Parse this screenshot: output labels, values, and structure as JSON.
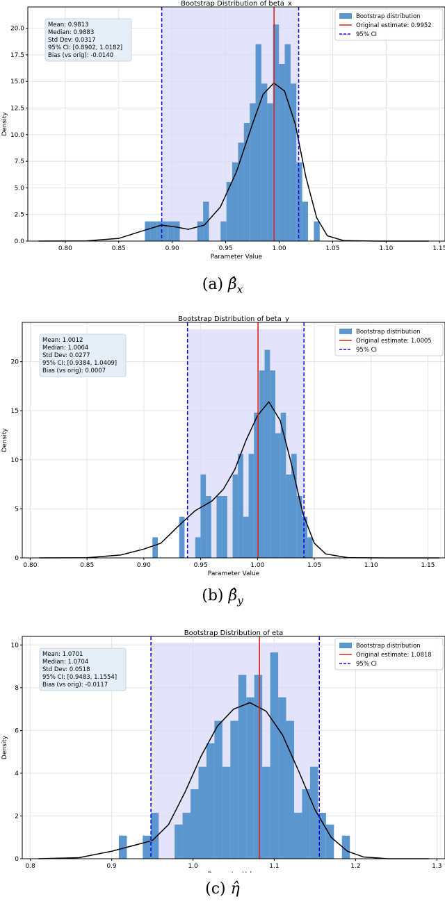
{
  "charts": [
    {
      "id": "a",
      "caption_prefix": "(a)",
      "caption_symbol": "β̂",
      "caption_subscript": "x",
      "stats": [
        "Mean: 0.9813",
        "Median: 0.9883",
        "Std Dev: 0.0317",
        "95% CI: [0.8902, 1.0182]",
        "Bias (vs orig): -0.0140"
      ]
    },
    {
      "id": "b",
      "caption_prefix": "(b)",
      "caption_symbol": "β̂",
      "caption_subscript": "y",
      "stats": [
        "Mean: 1.0012",
        "Median: 1.0064",
        "Std Dev: 0.0277",
        "95% CI: [0.9384, 1.0409]",
        "Bias (vs orig): 0.0007"
      ]
    },
    {
      "id": "c",
      "caption_prefix": "(c)",
      "caption_symbol": "η̂",
      "caption_subscript": "",
      "stats": [
        "Mean: 1.0701",
        "Median: 1.0704",
        "Std Dev: 0.0518",
        "95% CI: [0.9483, 1.1554]",
        "Bias (vs orig): -0.0117"
      ]
    }
  ],
  "chart_data": [
    {
      "type": "bar",
      "title": "Bootstrap Distribution of beta_x",
      "xlabel": "Parameter Value",
      "ylabel": "Density",
      "xlim": [
        0.765,
        1.155
      ],
      "ylim": [
        0,
        22.0
      ],
      "xticks": [
        0.8,
        0.85,
        0.9,
        0.95,
        1.0,
        1.05,
        1.1,
        1.15
      ],
      "xtick_labels": [
        "0.80",
        "0.85",
        "0.90",
        "0.95",
        "1.00",
        "1.05",
        "1.10",
        "1.15"
      ],
      "yticks": [
        0,
        2.5,
        5,
        7.5,
        10,
        12.5,
        15,
        17.5,
        20
      ],
      "ytick_labels": [
        "0.0",
        "2.5",
        "5.0",
        "7.5",
        "10.0",
        "12.5",
        "15.0",
        "17.5",
        "20.0"
      ],
      "bin_width": 0.00545,
      "bins": [
        [
          0.8744,
          1.85
        ],
        [
          0.8798,
          1.85
        ],
        [
          0.8853,
          1.85
        ],
        [
          0.8907,
          1.85
        ],
        [
          0.8962,
          1.85
        ],
        [
          0.9016,
          1.85
        ],
        [
          0.9234,
          1.85
        ],
        [
          0.9289,
          3.7
        ],
        [
          0.9452,
          1.85
        ],
        [
          0.9507,
          5.55
        ],
        [
          0.9561,
          7.4
        ],
        [
          0.9616,
          9.25
        ],
        [
          0.967,
          11.1
        ],
        [
          0.9725,
          12.95
        ],
        [
          0.9779,
          18.5
        ],
        [
          0.9834,
          14.8
        ],
        [
          0.9888,
          12.95
        ],
        [
          0.9943,
          20.35
        ],
        [
          0.9997,
          16.65
        ],
        [
          1.0052,
          18.5
        ],
        [
          1.0106,
          14.8
        ],
        [
          1.0161,
          7.4
        ],
        [
          1.0215,
          3.7
        ],
        [
          1.0324,
          1.85
        ]
      ],
      "kde": [
        [
          0.775,
          0
        ],
        [
          0.82,
          0.02
        ],
        [
          0.85,
          0.25
        ],
        [
          0.875,
          1.05
        ],
        [
          0.89,
          1.5
        ],
        [
          0.905,
          1.3
        ],
        [
          0.915,
          1.1
        ],
        [
          0.93,
          1.5
        ],
        [
          0.945,
          3.2
        ],
        [
          0.96,
          6.5
        ],
        [
          0.975,
          11.0
        ],
        [
          0.985,
          13.8
        ],
        [
          0.995,
          14.85
        ],
        [
          1.005,
          14.1
        ],
        [
          1.015,
          11.0
        ],
        [
          1.025,
          6.0
        ],
        [
          1.035,
          2.2
        ],
        [
          1.045,
          0.5
        ],
        [
          1.06,
          0.05
        ],
        [
          1.09,
          0.0
        ],
        [
          1.14,
          0.0
        ]
      ],
      "original_estimate": 0.9952,
      "ci": [
        0.8902,
        1.0182
      ],
      "ci_fill_top": 21.9,
      "legend": [
        "Bootstrap distribution",
        "Original estimate: 0.9952",
        "95% CI"
      ]
    },
    {
      "type": "bar",
      "title": "Bootstrap Distribution of beta_y",
      "xlabel": "Parameter Value",
      "ylabel": "Density",
      "xlim": [
        0.793,
        1.165
      ],
      "ylim": [
        0,
        24.0
      ],
      "xticks": [
        0.8,
        0.85,
        0.9,
        0.95,
        1.0,
        1.05,
        1.1,
        1.15
      ],
      "xtick_labels": [
        "0.80",
        "0.85",
        "0.90",
        "0.95",
        "1.00",
        "1.05",
        "1.10",
        "1.15"
      ],
      "yticks": [
        0,
        5,
        10,
        15,
        20
      ],
      "ytick_labels": [
        "0",
        "5",
        "10",
        "15",
        "20"
      ],
      "bin_width": 0.0047,
      "bins": [
        [
          0.9076,
          2.1
        ],
        [
          0.9311,
          4.2
        ],
        [
          0.9452,
          2.1
        ],
        [
          0.9499,
          8.5
        ],
        [
          0.9546,
          6.3
        ],
        [
          0.964,
          6.3
        ],
        [
          0.9687,
          6.3
        ],
        [
          0.9781,
          8.5
        ],
        [
          0.9828,
          10.6
        ],
        [
          0.9875,
          4.2
        ],
        [
          0.9922,
          10.6
        ],
        [
          0.9969,
          14.8
        ],
        [
          1.0016,
          19.1
        ],
        [
          1.0063,
          21.2
        ],
        [
          1.011,
          19.1
        ],
        [
          1.0157,
          12.7
        ],
        [
          1.0204,
          14.8
        ],
        [
          1.0251,
          8.5
        ],
        [
          1.0298,
          10.6
        ],
        [
          1.0345,
          6.3
        ],
        [
          1.0392,
          4.2
        ],
        [
          1.0439,
          2.1
        ]
      ],
      "kde": [
        [
          0.808,
          0
        ],
        [
          0.85,
          0.02
        ],
        [
          0.88,
          0.3
        ],
        [
          0.9,
          0.9
        ],
        [
          0.915,
          1.5
        ],
        [
          0.93,
          3.2
        ],
        [
          0.945,
          4.8
        ],
        [
          0.96,
          5.8
        ],
        [
          0.97,
          7.0
        ],
        [
          0.98,
          9.0
        ],
        [
          0.99,
          12.0
        ],
        [
          1.0,
          14.5
        ],
        [
          1.01,
          15.9
        ],
        [
          1.02,
          14.0
        ],
        [
          1.03,
          9.5
        ],
        [
          1.04,
          4.5
        ],
        [
          1.05,
          1.5
        ],
        [
          1.06,
          0.4
        ],
        [
          1.08,
          0.02
        ],
        [
          1.11,
          0.0
        ],
        [
          1.16,
          0.0
        ]
      ],
      "original_estimate": 1.0005,
      "ci": [
        0.9384,
        1.0409
      ],
      "ci_fill_top": 23.3,
      "legend": [
        "Bootstrap distribution",
        "Original estimate: 1.0005",
        "95% CI"
      ]
    },
    {
      "type": "bar",
      "title": "Bootstrap Distribution of eta",
      "xlabel": "Parameter Value",
      "ylabel": "Density",
      "xlim": [
        0.79,
        1.31
      ],
      "ylim": [
        0,
        10.4
      ],
      "xticks": [
        0.8,
        0.9,
        1.0,
        1.1,
        1.2,
        1.3
      ],
      "xtick_labels": [
        "0.8",
        "0.9",
        "1.0",
        "1.1",
        "1.2",
        "1.3"
      ],
      "yticks": [
        0,
        2,
        4,
        6,
        8,
        10
      ],
      "ytick_labels": [
        "0",
        "2",
        "4",
        "6",
        "8",
        "10"
      ],
      "bin_width": 0.0098,
      "bins": [
        [
          0.9088,
          1.08
        ],
        [
          0.9382,
          1.08
        ],
        [
          0.948,
          2.15
        ],
        [
          0.9774,
          1.6
        ],
        [
          0.9872,
          2.15
        ],
        [
          0.997,
          3.25
        ],
        [
          1.0068,
          4.3
        ],
        [
          1.0166,
          5.4
        ],
        [
          1.0264,
          6.45
        ],
        [
          1.0362,
          4.3
        ],
        [
          1.046,
          6.45
        ],
        [
          1.0558,
          8.6
        ],
        [
          1.0656,
          7.55
        ],
        [
          1.0754,
          8.6
        ],
        [
          1.0852,
          4.3
        ],
        [
          1.095,
          9.65
        ],
        [
          1.1048,
          7.55
        ],
        [
          1.1146,
          6.45
        ],
        [
          1.1244,
          2.15
        ],
        [
          1.1342,
          3.25
        ],
        [
          1.144,
          4.3
        ],
        [
          1.1538,
          2.15
        ],
        [
          1.1636,
          1.6
        ],
        [
          1.1832,
          1.08
        ]
      ],
      "kde": [
        [
          0.81,
          0
        ],
        [
          0.86,
          0.05
        ],
        [
          0.9,
          0.35
        ],
        [
          0.93,
          0.65
        ],
        [
          0.95,
          0.85
        ],
        [
          0.97,
          1.6
        ],
        [
          0.99,
          3.1
        ],
        [
          1.01,
          4.8
        ],
        [
          1.03,
          6.2
        ],
        [
          1.05,
          7.0
        ],
        [
          1.07,
          7.3
        ],
        [
          1.09,
          6.9
        ],
        [
          1.11,
          5.8
        ],
        [
          1.13,
          4.1
        ],
        [
          1.15,
          2.3
        ],
        [
          1.17,
          1.0
        ],
        [
          1.19,
          0.35
        ],
        [
          1.21,
          0.08
        ],
        [
          1.24,
          0.0
        ],
        [
          1.29,
          0.0
        ]
      ],
      "original_estimate": 1.0818,
      "ci": [
        0.9483,
        1.1554
      ],
      "ci_fill_top": 10.1,
      "legend": [
        "Bootstrap distribution",
        "Original estimate: 1.0818",
        "95% CI"
      ]
    }
  ]
}
